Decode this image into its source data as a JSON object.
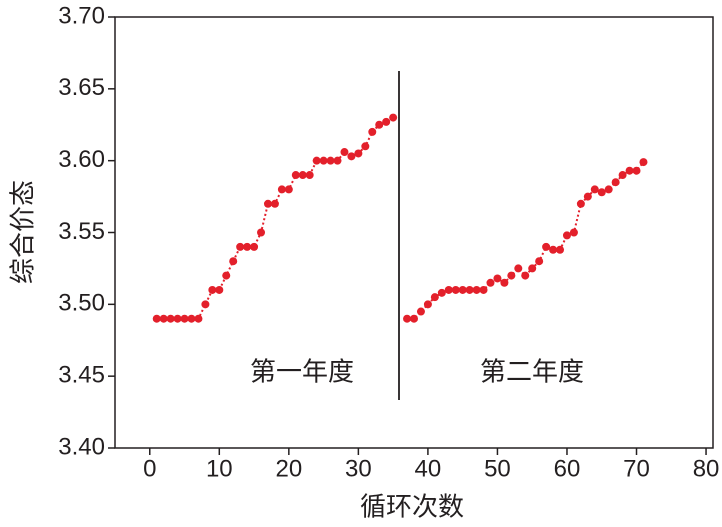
{
  "chart_data": {
    "type": "line",
    "x_label": "循环次数",
    "y_label": "综合价态",
    "annotations": [
      "第一年度",
      "第二年度"
    ],
    "x": [
      1,
      2,
      3,
      4,
      5,
      6,
      7,
      8,
      9,
      10,
      11,
      12,
      13,
      14,
      15,
      16,
      17,
      18,
      19,
      20,
      21,
      22,
      23,
      24,
      25,
      26,
      27,
      28,
      29,
      30,
      31,
      32,
      33,
      34,
      35,
      36,
      37,
      38,
      39,
      40,
      41,
      42,
      43,
      44,
      45,
      46,
      47,
      48,
      49,
      50,
      51,
      52,
      53,
      54,
      55,
      56,
      57,
      58,
      59,
      60,
      61,
      62,
      63,
      64,
      65,
      66,
      67,
      68,
      69,
      70,
      71
    ],
    "series": [
      {
        "color": "#e3202b",
        "values": [
          3.49,
          3.49,
          3.49,
          3.49,
          3.49,
          3.49,
          3.49,
          3.5,
          3.51,
          3.51,
          3.52,
          3.53,
          3.54,
          3.54,
          3.54,
          3.55,
          3.57,
          3.57,
          3.58,
          3.58,
          3.59,
          3.59,
          3.59,
          3.6,
          3.6,
          3.6,
          3.6,
          3.606,
          3.603,
          3.605,
          3.61,
          3.62,
          3.625,
          3.627,
          3.63,
          null,
          3.49,
          3.49,
          3.495,
          3.5,
          3.505,
          3.508,
          3.51,
          3.51,
          3.51,
          3.51,
          3.51,
          3.51,
          3.515,
          3.518,
          3.515,
          3.52,
          3.525,
          3.52,
          3.525,
          3.53,
          3.54,
          3.538,
          3.538,
          3.548,
          3.55,
          3.57,
          3.575,
          3.58,
          3.578,
          3.58,
          3.585,
          3.59,
          3.593,
          3.593,
          3.599
        ]
      }
    ],
    "xlim": [
      -5,
      81
    ],
    "ylim": [
      3.4,
      3.7
    ],
    "xticks": [
      0,
      10,
      20,
      30,
      40,
      50,
      60,
      70,
      80
    ],
    "yticks": [
      {
        "value": 3.4,
        "label": "3.40"
      },
      {
        "value": 3.45,
        "label": "3.45"
      },
      {
        "value": 3.5,
        "label": "3.50"
      },
      {
        "value": 3.55,
        "label": "3.55"
      },
      {
        "value": 3.6,
        "label": "3.60"
      },
      {
        "value": 3.65,
        "label": "3.65"
      },
      {
        "value": 3.7,
        "label": "3.70"
      }
    ]
  }
}
